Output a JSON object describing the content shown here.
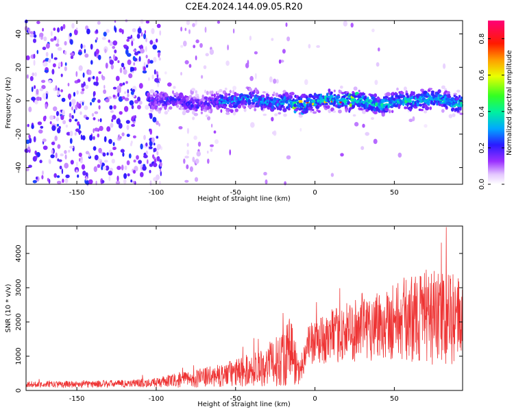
{
  "title": "C2E4.2024.144.09.05.R20",
  "chart_data": [
    {
      "type": "heatmap",
      "xlabel": "Height of straight line (km)",
      "ylabel": "Frequency (Hz)",
      "xlim": [
        -182,
        93
      ],
      "ylim": [
        -50,
        48
      ],
      "xticks": [
        -150,
        -100,
        -50,
        0,
        50
      ],
      "yticks": [
        -40,
        -20,
        0,
        20,
        40
      ],
      "colorbar": {
        "label": "Normalized spectral amplitude",
        "range": [
          0.0,
          0.9
        ],
        "ticks": [
          0.0,
          0.2,
          0.4,
          0.6,
          0.8
        ],
        "colormap": "rainbow (white-violet-blue-cyan-green-yellow-red-magenta)"
      },
      "description_values": {
        "band_center_hz": 0,
        "band_halfwidth_hz": 5,
        "noise_region_x": [
          -182,
          -95
        ],
        "peak_amplitude_x": [
          -15,
          25
        ]
      }
    },
    {
      "type": "line",
      "xlabel": "Height of straight line (km)",
      "ylabel": "SNR (10 * v/v)",
      "xlim": [
        -182,
        93
      ],
      "ylim": [
        0,
        4800
      ],
      "xticks": [
        -150,
        -100,
        -50,
        0,
        50
      ],
      "yticks": [
        0,
        1000,
        2000,
        3000,
        4000
      ],
      "color": "#ee3333",
      "envelope": [
        {
          "x": -182,
          "mean": 180,
          "amp": 90
        },
        {
          "x": -150,
          "mean": 180,
          "amp": 100
        },
        {
          "x": -120,
          "mean": 200,
          "amp": 110
        },
        {
          "x": -100,
          "mean": 230,
          "amp": 140
        },
        {
          "x": -80,
          "mean": 330,
          "amp": 250
        },
        {
          "x": -60,
          "mean": 430,
          "amp": 330
        },
        {
          "x": -40,
          "mean": 600,
          "amp": 500
        },
        {
          "x": -25,
          "mean": 820,
          "amp": 700
        },
        {
          "x": -15,
          "mean": 1200,
          "amp": 1100
        },
        {
          "x": -10,
          "mean": 500,
          "amp": 350
        },
        {
          "x": -5,
          "mean": 1300,
          "amp": 600
        },
        {
          "x": 10,
          "mean": 1550,
          "amp": 750
        },
        {
          "x": 30,
          "mean": 1850,
          "amp": 1000
        },
        {
          "x": 50,
          "mean": 2050,
          "amp": 1150
        },
        {
          "x": 70,
          "mean": 2150,
          "amp": 1400
        },
        {
          "x": 93,
          "mean": 2050,
          "amp": 1300
        }
      ]
    }
  ]
}
